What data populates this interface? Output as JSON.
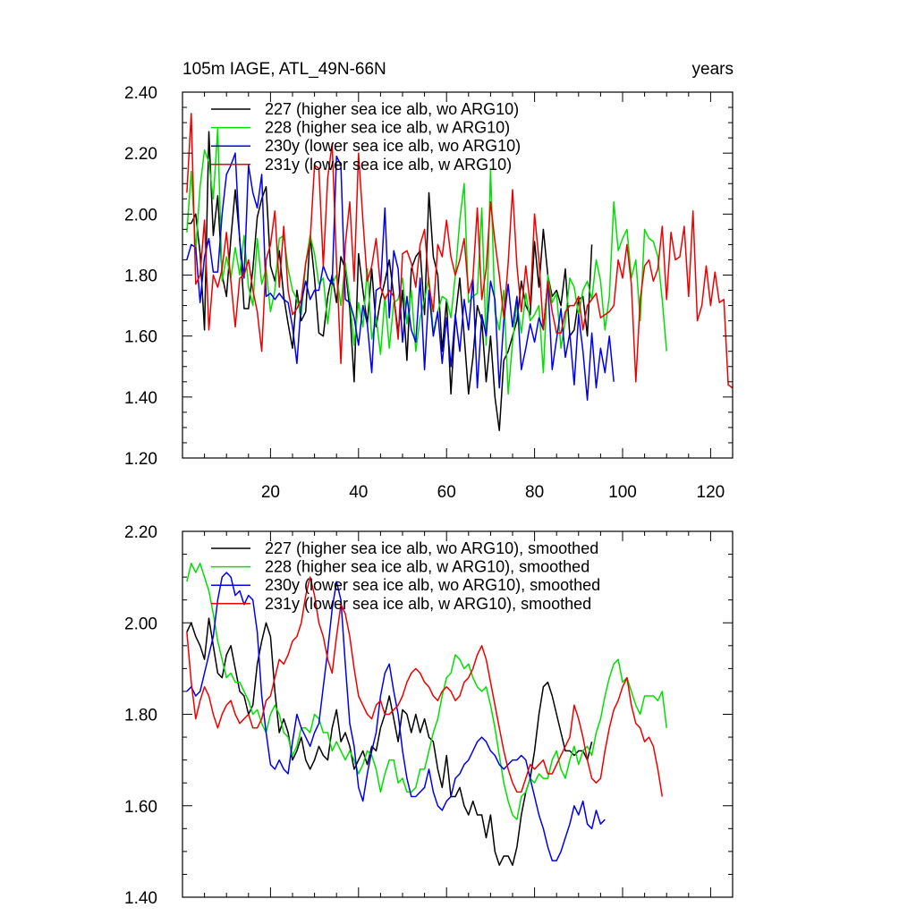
{
  "header": {
    "left": "105m IAGE, ATL_49N-66N",
    "right": "years"
  },
  "chart_data": [
    {
      "type": "line",
      "ylim": [
        1.2,
        2.4
      ],
      "yticks": [
        1.2,
        1.4,
        1.6,
        1.8,
        2.0,
        2.2,
        2.4
      ],
      "ytick_labels": [
        "1.20",
        "1.40",
        "1.60",
        "1.80",
        "2.00",
        "2.20",
        "2.40"
      ],
      "xlim": [
        0,
        125
      ],
      "xticks": [
        20,
        40,
        60,
        80,
        100,
        120
      ],
      "xtick_labels": [
        "20",
        "40",
        "60",
        "80",
        "100",
        "120"
      ],
      "legend_position": "top-left",
      "series": [
        {
          "name": "227 (higher sea ice alb, wo ARG10)",
          "color": "#000000",
          "values": [
            1.97,
            1.97,
            2.0,
            1.87,
            1.62,
            2.27,
            1.93,
            2.06,
            1.8,
            1.73,
            1.92,
            2.08,
            1.92,
            1.69,
            1.69,
            1.82,
            1.99,
            2.05,
            2.09,
            1.83,
            1.78,
            1.88,
            1.73,
            1.64,
            1.56,
            1.75,
            1.65,
            1.68,
            1.93,
            1.79,
            1.61,
            1.6,
            1.73,
            1.8,
            1.71,
            1.86,
            1.82,
            1.69,
            1.45,
            1.87,
            1.75,
            1.64,
            1.82,
            1.63,
            1.72,
            1.78,
            1.85,
            1.73,
            1.61,
            1.75,
            1.52,
            1.82,
            1.86,
            1.88,
            1.67,
            2.07,
            1.86,
            1.8,
            1.55,
            1.72,
            1.41,
            1.66,
            1.79,
            1.6,
            1.41,
            1.53,
            1.7,
            1.65,
            1.45,
            1.6,
            1.4,
            1.29,
            1.52,
            1.55,
            1.6,
            1.65,
            1.78,
            1.7,
            1.67,
            1.91,
            1.76,
            1.95,
            1.8,
            1.73,
            1.75,
            1.7,
            1.82,
            1.6,
            1.62,
            1.72,
            1.73,
            1.6,
            1.9
          ]
        },
        {
          "name": "228 (higher sea ice alb, w ARG10)",
          "color": "#00e000",
          "values": [
            1.94,
            2.14,
            1.88,
            2.09,
            2.21,
            2.17,
            2.05,
            2.28,
            1.78,
            1.86,
            1.79,
            1.89,
            1.8,
            1.93,
            1.76,
            1.7,
            1.92,
            1.77,
            1.82,
            1.68,
            1.75,
            1.92,
            1.93,
            1.82,
            1.75,
            1.72,
            1.67,
            1.84,
            1.93,
            1.87,
            1.77,
            1.79,
            1.64,
            1.77,
            1.8,
            1.7,
            1.84,
            1.72,
            1.57,
            1.71,
            1.63,
            1.82,
            1.59,
            1.66,
            1.54,
            1.73,
            1.56,
            1.71,
            1.72,
            1.79,
            1.64,
            1.75,
            1.55,
            1.66,
            1.72,
            1.79,
            1.61,
            1.68,
            1.73,
            1.72,
            1.66,
            1.8,
            1.98,
            2.1,
            1.71,
            1.73,
            1.74,
            2.02,
            1.57,
            2.15,
            1.68,
            1.62,
            1.75,
            1.41,
            1.58,
            1.71,
            1.61,
            1.74,
            1.65,
            1.67,
            1.7,
            1.48,
            1.8,
            1.71,
            1.74,
            1.56,
            1.65,
            1.79,
            1.76,
            1.67,
            1.75,
            1.78,
            1.72,
            1.85,
            1.78,
            1.62,
            1.73,
            2.04,
            1.88,
            1.92,
            1.95,
            1.79,
            1.85,
            1.65,
            1.95,
            1.92,
            1.91,
            1.86,
            1.72,
            1.55
          ]
        },
        {
          "name": "230y (lower sea ice alb, wo ARG10)",
          "color": "#0000ee",
          "values": [
            1.85,
            1.9,
            1.89,
            1.71,
            1.86,
            1.92,
            1.81,
            1.81,
            2.0,
            2.13,
            2.16,
            2.2,
            1.91,
            1.79,
            2.16,
            2.07,
            2.02,
            2.13,
            1.73,
            1.74,
            1.72,
            1.74,
            1.72,
            1.71,
            1.63,
            1.51,
            1.71,
            1.78,
            1.72,
            1.75,
            1.75,
            1.83,
            1.79,
            1.77,
            2.19,
            2.16,
            1.72,
            1.71,
            1.66,
            1.57,
            1.7,
            1.64,
            1.48,
            1.75,
            1.76,
            2.02,
            1.66,
            1.88,
            1.82,
            1.58,
            1.73,
            1.62,
            1.58,
            1.79,
            1.49,
            1.75,
            1.6,
            1.68,
            1.51,
            1.66,
            1.5,
            1.67,
            1.55,
            1.72,
            1.62,
            1.79,
            1.43,
            1.67,
            1.6,
            1.78,
            1.72,
            1.43,
            1.65,
            1.77,
            1.63,
            1.73,
            1.49,
            1.56,
            1.64,
            1.58,
            1.66,
            1.62,
            1.78,
            1.49,
            1.59,
            1.69,
            1.53,
            1.61,
            1.44,
            1.67,
            1.55,
            1.39,
            1.61,
            1.43,
            1.56,
            1.48,
            1.6,
            1.45
          ]
        },
        {
          "name": "231y (lower sea ice alb, w ARG10)",
          "color": "#ee0000",
          "values": [
            2.07,
            2.33,
            1.77,
            1.8,
            1.98,
            1.62,
            1.8,
            1.76,
            1.82,
            1.94,
            1.78,
            1.63,
            1.79,
            1.8,
            1.85,
            1.75,
            1.68,
            1.55,
            1.85,
            1.9,
            2.01,
            1.76,
            1.96,
            1.75,
            1.67,
            1.69,
            1.72,
            1.84,
            1.91,
            2.16,
            2.15,
            1.83,
            2.12,
            2.23,
            1.84,
            1.51,
            1.9,
            2.04,
            1.78,
            2.2,
            1.98,
            1.78,
            1.83,
            1.92,
            1.76,
            1.72,
            1.75,
            1.73,
            1.59,
            1.87,
            1.88,
            1.84,
            1.76,
            1.9,
            1.95,
            1.77,
            1.68,
            1.9,
            1.86,
            1.98,
            1.86,
            1.8,
            1.85,
            1.92,
            1.74,
            1.79,
            2.02,
            1.72,
            1.82,
            2.04,
            1.91,
            1.8,
            1.66,
            1.84,
            2.08,
            1.83,
            1.68,
            1.83,
            1.7,
            2.0,
            1.85,
            1.62,
            1.78,
            1.68,
            1.61,
            1.61,
            1.68,
            1.7,
            1.7,
            1.73,
            1.62,
            1.7,
            1.72,
            1.74,
            1.66,
            1.67,
            1.68,
            1.7,
            1.85,
            1.79,
            1.9,
            1.77,
            1.45,
            1.72,
            1.83,
            1.85,
            1.78,
            1.82,
            1.96,
            1.72,
            1.94,
            1.85,
            1.86,
            1.96,
            1.73,
            2.01,
            1.65,
            1.7,
            1.83,
            1.7,
            1.81,
            1.71,
            1.72,
            1.44,
            1.43
          ]
        }
      ]
    },
    {
      "type": "line",
      "ylim": [
        1.4,
        2.2
      ],
      "yticks": [
        1.4,
        1.6,
        1.8,
        2.0,
        2.2
      ],
      "ytick_labels": [
        "1.40",
        "1.60",
        "1.80",
        "2.00",
        "2.20"
      ],
      "xlim": [
        0,
        125
      ],
      "xticks": [
        20,
        40,
        60,
        80,
        100,
        120
      ],
      "legend_position": "top-left",
      "series": [
        {
          "name": "227 (higher sea ice alb, wo ARG10), smoothed",
          "color": "#000000",
          "values": [
            1.98,
            2.0,
            1.97,
            1.95,
            1.92,
            2.01,
            1.95,
            1.89,
            1.88,
            1.93,
            1.95,
            1.9,
            1.85,
            1.84,
            1.8,
            1.82,
            1.91,
            1.96,
            2.0,
            1.97,
            1.85,
            1.76,
            1.79,
            1.76,
            1.7,
            1.72,
            1.75,
            1.7,
            1.68,
            1.7,
            1.73,
            1.71,
            1.7,
            1.77,
            1.81,
            1.74,
            1.76,
            1.73,
            1.68,
            1.7,
            1.72,
            1.69,
            1.73,
            1.72,
            1.77,
            1.8,
            1.84,
            1.79,
            1.74,
            1.81,
            1.8,
            1.76,
            1.8,
            1.76,
            1.79,
            1.75,
            1.74,
            1.68,
            1.64,
            1.71,
            1.62,
            1.62,
            1.64,
            1.6,
            1.58,
            1.61,
            1.58,
            1.58,
            1.53,
            1.58,
            1.5,
            1.47,
            1.49,
            1.49,
            1.47,
            1.51,
            1.58,
            1.63,
            1.66,
            1.72,
            1.8,
            1.86,
            1.87,
            1.84,
            1.8,
            1.76,
            1.72,
            1.72,
            1.71,
            1.72,
            1.72,
            1.7,
            1.74
          ]
        },
        {
          "name": "228 (higher sea ice alb, w ARG10), smoothed",
          "color": "#00e000",
          "values": [
            2.09,
            2.13,
            2.11,
            2.13,
            2.1,
            2.07,
            2.02,
            1.96,
            1.92,
            1.88,
            1.89,
            1.87,
            1.87,
            1.85,
            1.83,
            1.8,
            1.81,
            1.78,
            1.76,
            1.8,
            1.82,
            1.8,
            1.76,
            1.75,
            1.71,
            1.73,
            1.77,
            1.77,
            1.76,
            1.8,
            1.79,
            1.76,
            1.76,
            1.72,
            1.74,
            1.72,
            1.7,
            1.72,
            1.7,
            1.67,
            1.69,
            1.72,
            1.71,
            1.68,
            1.63,
            1.67,
            1.7,
            1.7,
            1.65,
            1.66,
            1.63,
            1.63,
            1.64,
            1.68,
            1.68,
            1.72,
            1.76,
            1.79,
            1.84,
            1.88,
            1.89,
            1.93,
            1.92,
            1.9,
            1.91,
            1.88,
            1.86,
            1.85,
            1.86,
            1.82,
            1.77,
            1.71,
            1.65,
            1.61,
            1.58,
            1.57,
            1.62,
            1.63,
            1.66,
            1.65,
            1.67,
            1.66,
            1.66,
            1.7,
            1.72,
            1.68,
            1.66,
            1.7,
            1.73,
            1.69,
            1.72,
            1.73,
            1.71,
            1.76,
            1.79,
            1.84,
            1.88,
            1.91,
            1.92,
            1.87,
            1.88,
            1.85,
            1.82,
            1.8,
            1.84,
            1.84,
            1.84,
            1.83,
            1.85,
            1.77
          ]
        },
        {
          "name": "230y (lower sea ice alb, wo ARG10), smoothed",
          "color": "#0000ee",
          "values": [
            1.85,
            1.86,
            1.84,
            1.85,
            1.89,
            1.93,
            1.97,
            2.05,
            2.1,
            2.11,
            2.1,
            2.06,
            2.07,
            2.04,
            2.06,
            2.05,
            1.98,
            1.84,
            1.76,
            1.69,
            1.68,
            1.7,
            1.68,
            1.67,
            1.74,
            1.8,
            1.77,
            1.75,
            1.73,
            1.76,
            1.78,
            1.86,
            1.94,
            2.03,
            2.09,
            2.05,
            1.91,
            1.78,
            1.73,
            1.64,
            1.61,
            1.67,
            1.72,
            1.76,
            1.84,
            1.89,
            1.91,
            1.85,
            1.8,
            1.72,
            1.66,
            1.62,
            1.62,
            1.63,
            1.64,
            1.68,
            1.63,
            1.6,
            1.59,
            1.61,
            1.62,
            1.66,
            1.67,
            1.69,
            1.7,
            1.72,
            1.74,
            1.75,
            1.74,
            1.72,
            1.71,
            1.69,
            1.68,
            1.69,
            1.7,
            1.7,
            1.71,
            1.7,
            1.66,
            1.62,
            1.58,
            1.55,
            1.51,
            1.48,
            1.48,
            1.5,
            1.53,
            1.56,
            1.6,
            1.58,
            1.61,
            1.56,
            1.55,
            1.59,
            1.56,
            1.57
          ]
        },
        {
          "name": "231y (lower sea ice alb, w ARG10), smoothed",
          "color": "#ee0000",
          "values": [
            1.98,
            1.87,
            1.79,
            1.83,
            1.86,
            1.84,
            1.8,
            1.77,
            1.8,
            1.82,
            1.83,
            1.8,
            1.78,
            1.79,
            1.8,
            1.77,
            1.77,
            1.79,
            1.83,
            1.84,
            1.88,
            1.92,
            1.91,
            1.93,
            1.96,
            1.97,
            2.0,
            2.06,
            2.1,
            2.06,
            2.0,
            1.97,
            1.92,
            1.89,
            1.97,
            2.04,
            2.02,
            1.97,
            1.9,
            1.84,
            1.82,
            1.8,
            1.79,
            1.82,
            1.83,
            1.8,
            1.8,
            1.81,
            1.82,
            1.84,
            1.87,
            1.89,
            1.9,
            1.89,
            1.87,
            1.86,
            1.84,
            1.83,
            1.85,
            1.86,
            1.85,
            1.83,
            1.84,
            1.87,
            1.88,
            1.9,
            1.93,
            1.95,
            1.92,
            1.87,
            1.82,
            1.77,
            1.72,
            1.68,
            1.65,
            1.63,
            1.63,
            1.66,
            1.69,
            1.68,
            1.69,
            1.7,
            1.67,
            1.67,
            1.69,
            1.71,
            1.73,
            1.75,
            1.82,
            1.79,
            1.75,
            1.7,
            1.66,
            1.65,
            1.66,
            1.72,
            1.77,
            1.81,
            1.83,
            1.86,
            1.88,
            1.82,
            1.78,
            1.77,
            1.74,
            1.75,
            1.73,
            1.68,
            1.62
          ]
        }
      ]
    }
  ]
}
